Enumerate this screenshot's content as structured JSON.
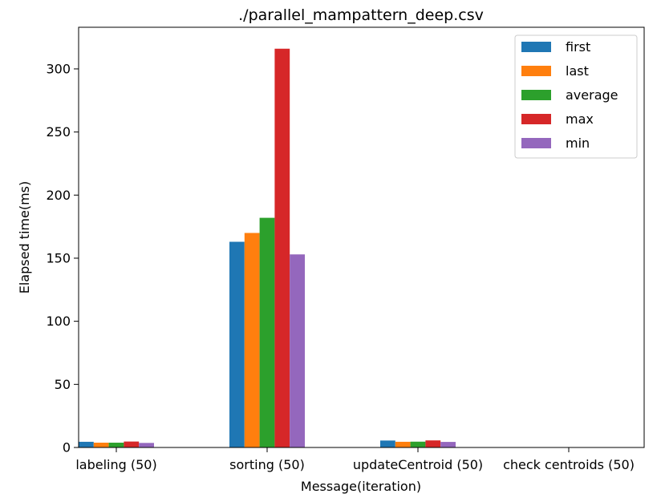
{
  "chart_data": {
    "type": "bar",
    "title": "./parallel_mampattern_deep.csv",
    "xlabel": "Message(iteration)",
    "ylabel": "Elapsed time(ms)",
    "ylim": [
      0,
      333
    ],
    "yticks": [
      0,
      50,
      100,
      150,
      200,
      250,
      300
    ],
    "categories": [
      "labeling (50)",
      "sorting (50)",
      "updateCentroid (50)",
      "check centroids (50)"
    ],
    "series": [
      {
        "name": "first",
        "color": "#1f77b4",
        "values": [
          4.5,
          163,
          5.5,
          0.1
        ]
      },
      {
        "name": "last",
        "color": "#ff7f0e",
        "values": [
          3.8,
          170,
          4.5,
          0.1
        ]
      },
      {
        "name": "average",
        "color": "#2ca02c",
        "values": [
          3.8,
          182,
          4.6,
          0.1
        ]
      },
      {
        "name": "max",
        "color": "#d62728",
        "values": [
          4.7,
          316,
          5.6,
          0.1
        ]
      },
      {
        "name": "min",
        "color": "#9467bd",
        "values": [
          3.6,
          153,
          4.4,
          0.1
        ]
      }
    ],
    "legend": "top-right",
    "grid": false
  }
}
